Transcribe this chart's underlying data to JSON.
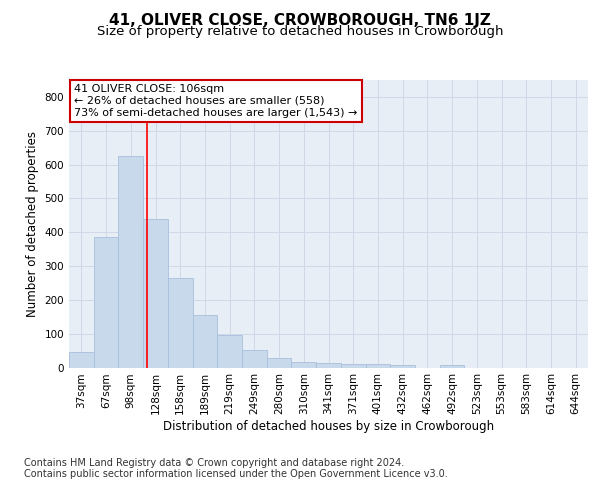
{
  "title": "41, OLIVER CLOSE, CROWBOROUGH, TN6 1JZ",
  "subtitle": "Size of property relative to detached houses in Crowborough",
  "xlabel": "Distribution of detached houses by size in Crowborough",
  "ylabel": "Number of detached properties",
  "categories": [
    "37sqm",
    "67sqm",
    "98sqm",
    "128sqm",
    "158sqm",
    "189sqm",
    "219sqm",
    "249sqm",
    "280sqm",
    "310sqm",
    "341sqm",
    "371sqm",
    "401sqm",
    "432sqm",
    "462sqm",
    "492sqm",
    "523sqm",
    "553sqm",
    "583sqm",
    "614sqm",
    "644sqm"
  ],
  "values": [
    45,
    385,
    625,
    440,
    265,
    155,
    95,
    52,
    28,
    17,
    14,
    10,
    10,
    8,
    0,
    8,
    0,
    0,
    0,
    0,
    0
  ],
  "bar_color": "#c9d9ec",
  "bar_edge_color": "#a8c0dc",
  "grid_color": "#d0d8e8",
  "background_color": "#e8eef5",
  "red_line_x": 2.67,
  "annotation_text": "41 OLIVER CLOSE: 106sqm\n← 26% of detached houses are smaller (558)\n73% of semi-detached houses are larger (1,543) →",
  "annotation_box_color": "#ffffff",
  "annotation_box_edge": "#cc0000",
  "ylim": [
    0,
    850
  ],
  "yticks": [
    0,
    100,
    200,
    300,
    400,
    500,
    600,
    700,
    800
  ],
  "footer": "Contains HM Land Registry data © Crown copyright and database right 2024.\nContains public sector information licensed under the Open Government Licence v3.0.",
  "title_fontsize": 11,
  "subtitle_fontsize": 9.5,
  "axis_label_fontsize": 8.5,
  "tick_fontsize": 7.5,
  "annotation_fontsize": 8,
  "footer_fontsize": 7
}
